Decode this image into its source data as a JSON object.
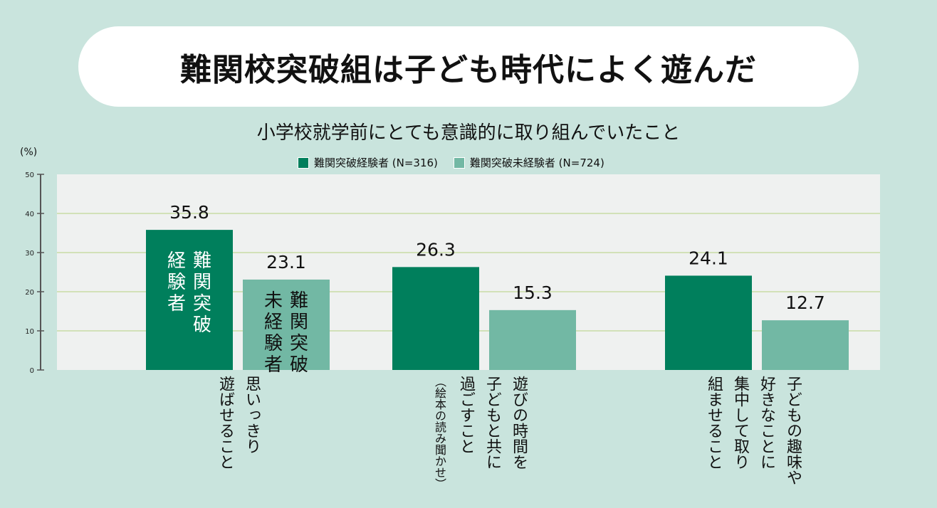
{
  "chart_data": {
    "type": "bar",
    "title": "難関校突破組は子ども時代によく遊んだ",
    "subtitle": "小学校就学前にとても意識的に取り組んでいたこと",
    "ylabel": "(%)",
    "ylim": [
      0,
      50
    ],
    "yticks": [
      0,
      10,
      20,
      30,
      40,
      50
    ],
    "grid": true,
    "legend_placement": "top",
    "categories": [
      "思いっきり\n遊ばせること",
      "遊びの時間を\n子どもと共に\n過ごすこと",
      "子どもの趣味や\n好きなことに\n集中して取り\n組ませること"
    ],
    "category_notes": [
      "",
      "（絵本の読み聞かせ）",
      ""
    ],
    "series": [
      {
        "name": "難関突破経験者 (N=316)",
        "values": [
          35.8,
          26.3,
          24.1
        ],
        "color": "#007f5c",
        "bar_label": "難関突破\n経験者"
      },
      {
        "name": "難関突破未経験者 (N=724)",
        "values": [
          23.1,
          15.3,
          12.7
        ],
        "color": "#72b8a4",
        "bar_label": "難関突破\n未経験者"
      }
    ],
    "legend": [
      "難関突破経験者 (N=316)",
      "難関突破未経験者 (N=724)"
    ],
    "data_labels": [
      "35.8",
      "26.3",
      "24.1",
      "23.1",
      "15.3",
      "12.7"
    ]
  }
}
